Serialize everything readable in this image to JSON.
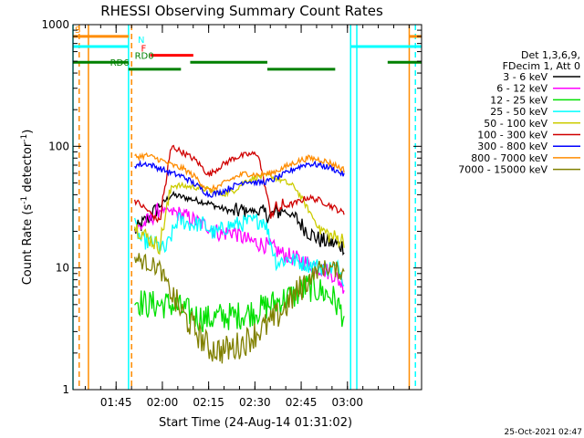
{
  "chart_data": {
    "type": "line",
    "title": "RHESSI Observing Summary Count Rates",
    "xlabel": "Start Time (24-Aug-14 01:31:02)",
    "ylabel": "Count Rate (s⁻¹ detector⁻¹)",
    "ylog": true,
    "ylim": [
      1,
      1000
    ],
    "xlim_minutes_after_0131": [
      0,
      113
    ],
    "x_ticks": [
      "01:45",
      "02:00",
      "02:15",
      "02:30",
      "02:45",
      "03:00"
    ],
    "y_ticks": [
      "1",
      "10",
      "100",
      "1000"
    ],
    "legend_header": [
      "Det 1,3,6,9,",
      "FDecim 1, Att 0"
    ],
    "legend_position": "right",
    "series": [
      {
        "name": "3 - 6 keV",
        "color": "#000000",
        "points": [
          [
            20,
            20
          ],
          [
            24,
            25
          ],
          [
            28,
            32
          ],
          [
            32,
            40
          ],
          [
            36,
            38
          ],
          [
            40,
            36
          ],
          [
            44,
            34
          ],
          [
            48,
            31
          ],
          [
            52,
            29
          ],
          [
            56,
            30
          ],
          [
            60,
            29
          ],
          [
            64,
            27
          ],
          [
            68,
            30
          ],
          [
            72,
            26
          ],
          [
            76,
            20
          ],
          [
            80,
            17
          ],
          [
            84,
            16
          ],
          [
            88,
            15
          ]
        ]
      },
      {
        "name": "6 - 12 keV",
        "color": "#ff00ff",
        "points": [
          [
            20,
            20
          ],
          [
            24,
            24
          ],
          [
            28,
            30
          ],
          [
            32,
            29
          ],
          [
            36,
            27
          ],
          [
            40,
            24
          ],
          [
            44,
            22
          ],
          [
            48,
            19
          ],
          [
            52,
            20
          ],
          [
            56,
            17
          ],
          [
            60,
            16
          ],
          [
            64,
            15
          ],
          [
            68,
            13
          ],
          [
            72,
            12
          ],
          [
            76,
            11
          ],
          [
            80,
            10
          ],
          [
            84,
            9
          ],
          [
            88,
            7
          ]
        ]
      },
      {
        "name": "12 - 25 keV",
        "color": "#00e000",
        "points": [
          [
            20,
            5.5
          ],
          [
            24,
            5
          ],
          [
            28,
            5
          ],
          [
            32,
            5
          ],
          [
            36,
            4.5
          ],
          [
            40,
            4
          ],
          [
            44,
            3.8
          ],
          [
            48,
            4
          ],
          [
            52,
            4
          ],
          [
            56,
            4.2
          ],
          [
            60,
            4.5
          ],
          [
            64,
            5
          ],
          [
            68,
            5.5
          ],
          [
            72,
            6
          ],
          [
            76,
            7
          ],
          [
            80,
            6.5
          ],
          [
            84,
            5.8
          ],
          [
            88,
            4
          ]
        ]
      },
      {
        "name": "25 - 50 keV",
        "color": "#00ffff",
        "points": [
          [
            20,
            22
          ],
          [
            22,
            17
          ],
          [
            26,
            16
          ],
          [
            30,
            14
          ],
          [
            34,
            25
          ],
          [
            38,
            23
          ],
          [
            42,
            23
          ],
          [
            46,
            19
          ],
          [
            50,
            22
          ],
          [
            54,
            23
          ],
          [
            58,
            24
          ],
          [
            62,
            25
          ],
          [
            66,
            11
          ],
          [
            70,
            12
          ],
          [
            74,
            11
          ],
          [
            78,
            10.5
          ],
          [
            82,
            10
          ],
          [
            86,
            10
          ],
          [
            88,
            8
          ]
        ]
      },
      {
        "name": "50 - 100 keV",
        "color": "#cccc00",
        "points": [
          [
            20,
            22
          ],
          [
            24,
            18
          ],
          [
            28,
            15
          ],
          [
            32,
            48
          ],
          [
            36,
            47
          ],
          [
            40,
            46
          ],
          [
            44,
            44
          ],
          [
            48,
            40
          ],
          [
            52,
            43
          ],
          [
            56,
            52
          ],
          [
            60,
            56
          ],
          [
            64,
            57
          ],
          [
            68,
            52
          ],
          [
            72,
            46
          ],
          [
            76,
            31
          ],
          [
            80,
            21
          ],
          [
            84,
            18
          ],
          [
            88,
            17
          ]
        ]
      },
      {
        "name": "100 - 300 keV",
        "color": "#d00000",
        "points": [
          [
            20,
            36
          ],
          [
            24,
            30
          ],
          [
            28,
            24
          ],
          [
            32,
            100
          ],
          [
            36,
            88
          ],
          [
            40,
            76
          ],
          [
            44,
            58
          ],
          [
            48,
            69
          ],
          [
            52,
            80
          ],
          [
            56,
            85
          ],
          [
            60,
            87
          ],
          [
            64,
            29
          ],
          [
            68,
            32
          ],
          [
            72,
            34
          ],
          [
            76,
            38
          ],
          [
            80,
            36
          ],
          [
            84,
            32
          ],
          [
            88,
            28
          ]
        ]
      },
      {
        "name": "300 - 800 keV",
        "color": "#0000ff",
        "points": [
          [
            20,
            70
          ],
          [
            24,
            72
          ],
          [
            28,
            66
          ],
          [
            32,
            60
          ],
          [
            36,
            56
          ],
          [
            40,
            48
          ],
          [
            44,
            40
          ],
          [
            48,
            42
          ],
          [
            52,
            47
          ],
          [
            56,
            52
          ],
          [
            60,
            50
          ],
          [
            64,
            52
          ],
          [
            68,
            58
          ],
          [
            72,
            66
          ],
          [
            76,
            72
          ],
          [
            80,
            70
          ],
          [
            84,
            66
          ],
          [
            88,
            58
          ]
        ]
      },
      {
        "name": "800 - 7000 keV",
        "color": "#ff8c00",
        "points": [
          [
            20,
            82
          ],
          [
            24,
            84
          ],
          [
            28,
            78
          ],
          [
            32,
            70
          ],
          [
            36,
            65
          ],
          [
            40,
            55
          ],
          [
            44,
            43
          ],
          [
            48,
            48
          ],
          [
            52,
            55
          ],
          [
            56,
            60
          ],
          [
            60,
            58
          ],
          [
            64,
            60
          ],
          [
            68,
            66
          ],
          [
            72,
            74
          ],
          [
            76,
            80
          ],
          [
            80,
            78
          ],
          [
            84,
            72
          ],
          [
            88,
            64
          ]
        ]
      },
      {
        "name": "7000 - 15000 keV",
        "color": "#808000",
        "points": [
          [
            20,
            12
          ],
          [
            24,
            11
          ],
          [
            28,
            10
          ],
          [
            32,
            6
          ],
          [
            36,
            4
          ],
          [
            40,
            3
          ],
          [
            44,
            2.2
          ],
          [
            48,
            2.1
          ],
          [
            52,
            2.2
          ],
          [
            56,
            2.5
          ],
          [
            60,
            3
          ],
          [
            64,
            3.5
          ],
          [
            68,
            4.5
          ],
          [
            72,
            6
          ],
          [
            76,
            8
          ],
          [
            80,
            10
          ],
          [
            84,
            10
          ],
          [
            88,
            9
          ]
        ]
      }
    ],
    "vertical_lines": [
      {
        "x": 0,
        "color": "#00ffff"
      },
      {
        "x": 2,
        "color": "#ff8c00",
        "dashed": true
      },
      {
        "x": 5,
        "color": "#ff8c00"
      },
      {
        "x": 18,
        "color": "#00ffff"
      },
      {
        "x": 19,
        "color": "#ff8c00",
        "dashed": true
      },
      {
        "x": 90,
        "color": "#00ffff"
      },
      {
        "x": 92,
        "color": "#00ffff"
      },
      {
        "x": 109,
        "color": "#ff8c00"
      },
      {
        "x": 111,
        "color": "#00ffff",
        "dashed": true
      }
    ],
    "flag_bars": [
      {
        "label": "S",
        "color": "#ff8c00",
        "y": 800,
        "segments": [
          [
            0,
            18
          ],
          [
            109,
            113
          ]
        ]
      },
      {
        "label": "N",
        "color": "#00ffff",
        "y": 660,
        "segments": [
          [
            0,
            18
          ],
          [
            90,
            113
          ]
        ]
      },
      {
        "label": "F",
        "color": "#ff0000",
        "y": 560,
        "segments": [
          [
            25,
            39
          ]
        ]
      },
      {
        "label": "RD0",
        "color": "#008000",
        "y": 490,
        "segments": [
          [
            0,
            18
          ],
          [
            38,
            63
          ],
          [
            102,
            113
          ]
        ]
      },
      {
        "label": "RD6",
        "color": "#008000",
        "y": 430,
        "segments": [
          [
            18,
            35
          ],
          [
            63,
            85
          ]
        ]
      }
    ]
  },
  "timestamp": "25-Oct-2021 02:47"
}
